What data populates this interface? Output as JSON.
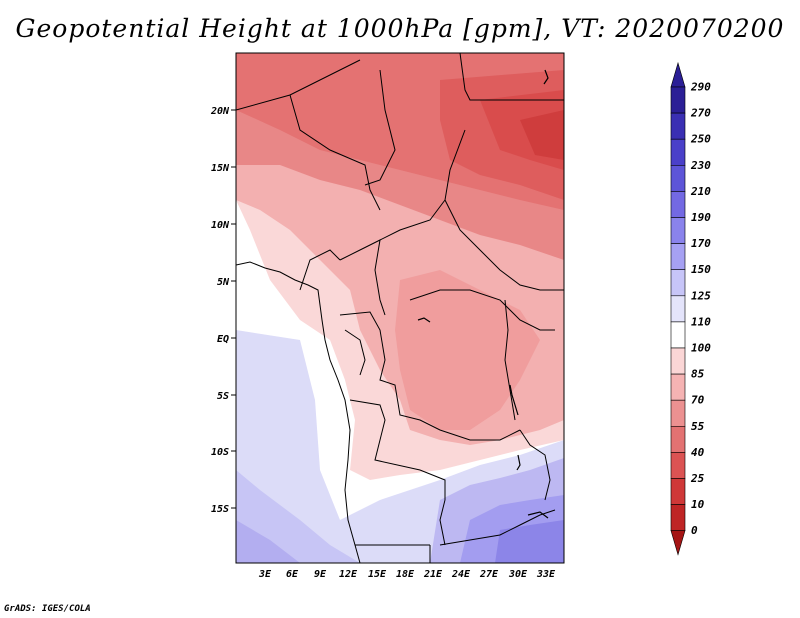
{
  "title": "Geopotential Height at 1000hPa [gpm], VT: 2020070200",
  "credit": "GrADS: IGES/COLA",
  "map": {
    "lat_labels": [
      "20N",
      "15N",
      "10N",
      "5N",
      "EQ",
      "5S",
      "10S",
      "15S"
    ],
    "lon_labels": [
      "3E",
      "6E",
      "9E",
      "12E",
      "15E",
      "18E",
      "21E",
      "24E",
      "27E",
      "30E",
      "33E"
    ]
  },
  "colorbar": {
    "labels": [
      "290",
      "270",
      "250",
      "230",
      "210",
      "190",
      "170",
      "150",
      "125",
      "110",
      "100",
      "85",
      "70",
      "55",
      "40",
      "25",
      "10",
      "0"
    ],
    "colors": [
      "#2b1f96",
      "#3a2fb3",
      "#4a40c9",
      "#5d55d8",
      "#7369e3",
      "#8a83ec",
      "#a6a1f3",
      "#c7c5f8",
      "#e4e4fb",
      "#ffffff",
      "#fbd6d6",
      "#f5b3b3",
      "#ec9191",
      "#e37272",
      "#db5353",
      "#cf3838",
      "#bf2525",
      "#a51515"
    ]
  }
}
